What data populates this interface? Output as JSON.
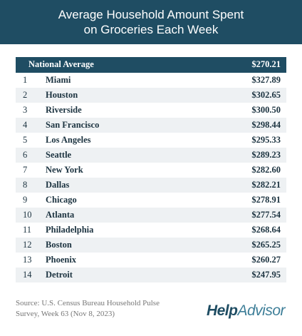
{
  "header": {
    "title": [
      "Average Household Amount Spent",
      "on Groceries Each Week"
    ]
  },
  "table": {
    "header": [
      "National Average",
      "$270.21"
    ],
    "rows": [
      [
        1,
        "Miami",
        "$327.89"
      ],
      [
        2,
        "Houston",
        "$302.65"
      ],
      [
        3,
        "Riverside",
        "$300.50"
      ],
      [
        4,
        "San Francisco",
        "$298.44"
      ],
      [
        5,
        "Los Angeles",
        "$295.33"
      ],
      [
        6,
        "Seattle",
        "$289.23"
      ],
      [
        7,
        "New York",
        "$282.60"
      ],
      [
        8,
        "Dallas",
        "$282.21"
      ],
      [
        9,
        "Chicago",
        "$278.91"
      ],
      [
        10,
        "Atlanta",
        "$277.54"
      ],
      [
        11,
        "Philadelphia",
        "$268.64"
      ],
      [
        12,
        "Boston",
        "$265.25"
      ],
      [
        13,
        "Phoenix",
        "$260.27"
      ],
      [
        14,
        "Detroit",
        "$247.95"
      ]
    ]
  },
  "footer": {
    "source": [
      "Source: U.S. Census Bureau Household Pulse",
      "Survey, Week 63 (Nov 8, 2023)"
    ],
    "logo": [
      "Help",
      "Advisor"
    ]
  }
}
